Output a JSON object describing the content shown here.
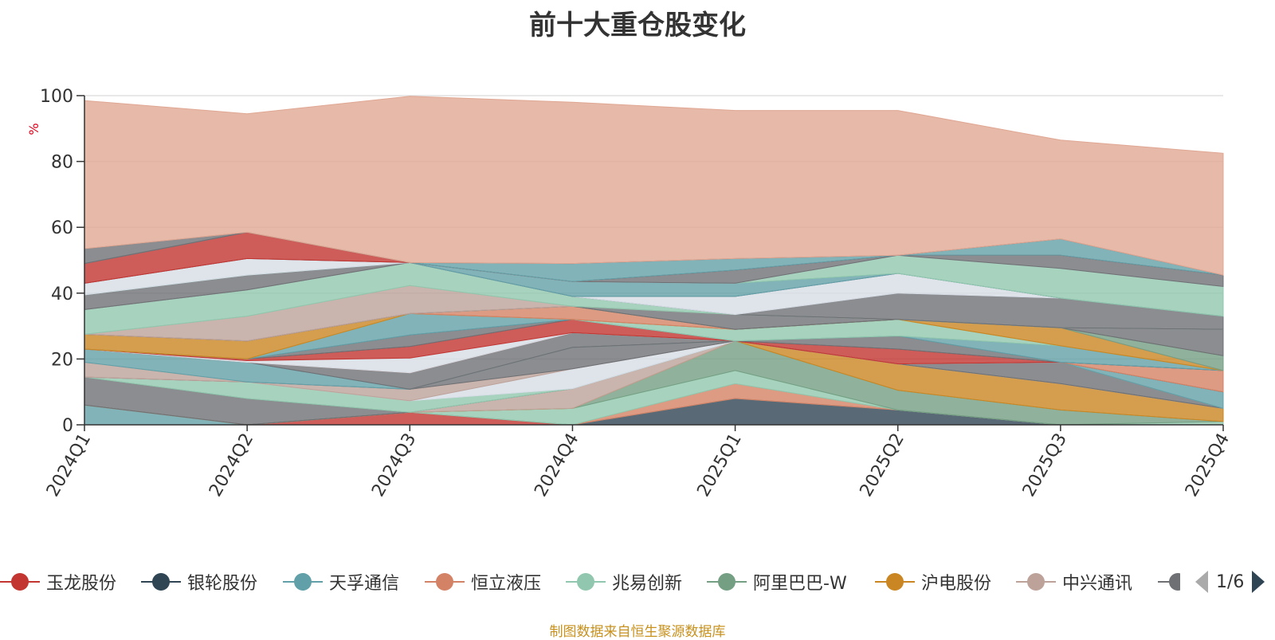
{
  "title": "前十大重仓股变化",
  "footer": "制图数据来自恒生聚源数据库",
  "legend_pager": "1/6",
  "chart_data": {
    "type": "area",
    "stacked": true,
    "title": "前十大重仓股变化",
    "ylabel": "%",
    "ylim": [
      0,
      100
    ],
    "yticks": [
      0,
      20,
      40,
      60,
      80,
      100
    ],
    "grid": true,
    "legend_position": "bottom",
    "categories": [
      "2024Q1",
      "2024Q2",
      "2024Q3",
      "2024Q4",
      "2025Q1",
      "2025Q2",
      "2025Q3",
      "2025Q4"
    ],
    "series": [
      {
        "name": "玉龙股份",
        "color": "#c23531",
        "values": [
          0,
          0,
          3.8,
          0,
          0,
          0,
          0,
          0
        ]
      },
      {
        "name": "银轮股份",
        "color": "#2f4554",
        "values": [
          0,
          0,
          0,
          0,
          8.0,
          4.5,
          0,
          0
        ]
      },
      {
        "name": "天孚通信",
        "color": "#61a0a8",
        "values": [
          6.0,
          0,
          0,
          0,
          0,
          0,
          0,
          0
        ]
      },
      {
        "name": "恒立液压",
        "color": "#d48265",
        "values": [
          0,
          0,
          0,
          0,
          4.5,
          0,
          0,
          0
        ]
      },
      {
        "name": "兆易创新",
        "color": "#91c7ae",
        "values": [
          0,
          0,
          0,
          5.0,
          4.0,
          0,
          0,
          1.0
        ]
      },
      {
        "name": "阿里巴巴-W",
        "color": "#749f83",
        "values": [
          0,
          0,
          0,
          0,
          9.0,
          6.0,
          4.5,
          0
        ]
      },
      {
        "name": "沪电股份",
        "color": "#ca8622",
        "values": [
          0,
          0,
          0,
          0,
          0,
          8.0,
          8.0,
          4.0
        ]
      },
      {
        "name": "中兴通讯",
        "color": "#bda29a",
        "values": [
          0,
          0,
          0,
          6.0,
          0,
          0,
          0,
          0
        ]
      },
      {
        "name": "",
        "color": "#6e7074",
        "values": [
          8.5,
          8.0,
          0,
          0,
          0,
          0,
          0,
          0
        ]
      },
      {
        "name": "",
        "color": "#91c7ae",
        "values": [
          0,
          5.0,
          3.5,
          0,
          0,
          0,
          0,
          0
        ]
      },
      {
        "name": "",
        "color": "#d7dde6",
        "values": [
          0,
          0,
          0,
          6.0,
          0,
          0,
          0,
          0
        ]
      },
      {
        "name": "",
        "color": "#bda29a",
        "values": [
          0,
          0,
          3.5,
          0,
          0,
          0,
          0,
          0
        ]
      },
      {
        "name": "",
        "color": "#6e7074",
        "values": [
          0,
          0,
          0,
          6.5,
          0,
          0,
          6.5,
          0
        ]
      },
      {
        "name": "",
        "color": "#bda29a",
        "values": [
          4.5,
          0,
          0,
          0,
          0,
          0,
          0,
          0
        ]
      },
      {
        "name": "",
        "color": "#61a0a8",
        "values": [
          4.0,
          6.0,
          0,
          0,
          0,
          0,
          0,
          5.0
        ]
      },
      {
        "name": "",
        "color": "#6e7074",
        "values": [
          0,
          0,
          5.0,
          4.5,
          0,
          0,
          0,
          0
        ]
      },
      {
        "name": "",
        "color": "#d48265",
        "values": [
          0,
          0,
          0,
          0,
          0,
          0,
          0,
          6.5
        ]
      },
      {
        "name": "",
        "color": "#d7dde6",
        "values": [
          0,
          0.5,
          4.5,
          0,
          0,
          0,
          0,
          0
        ]
      },
      {
        "name": "",
        "color": "#c23531",
        "values": [
          0,
          0.5,
          3.5,
          4.0,
          0,
          4.5,
          0,
          0
        ]
      },
      {
        "name": "",
        "color": "#6e7074",
        "values": [
          0,
          0,
          3.5,
          0,
          0,
          4.0,
          0,
          0
        ]
      },
      {
        "name": "",
        "color": "#61a0a8",
        "values": [
          0,
          0,
          6.5,
          0,
          0,
          0,
          5.0,
          0
        ]
      },
      {
        "name": "",
        "color": "#91c7ae",
        "values": [
          0,
          0,
          0,
          0,
          3.5,
          5.0,
          0,
          0
        ]
      },
      {
        "name": "",
        "color": "#ca8622",
        "values": [
          4.5,
          5.5,
          0,
          0,
          0,
          0,
          5.5,
          0
        ]
      },
      {
        "name": "",
        "color": "#d48265",
        "values": [
          0,
          0,
          0,
          4.0,
          0,
          0,
          0,
          0
        ]
      },
      {
        "name": "",
        "color": "#749f83",
        "values": [
          0,
          0,
          0,
          0,
          0,
          0,
          0,
          4.5
        ]
      },
      {
        "name": "",
        "color": "#6e7074",
        "values": [
          0,
          0,
          0,
          0,
          4.5,
          0,
          0,
          8.0
        ]
      },
      {
        "name": "",
        "color": "#bda29a",
        "values": [
          0,
          7.5,
          8.5,
          0,
          0,
          0,
          0,
          0
        ]
      },
      {
        "name": "",
        "color": "#91c7ae",
        "values": [
          7.5,
          8.0,
          7.0,
          3.0,
          0,
          0,
          0,
          0
        ]
      },
      {
        "name": "",
        "color": "#6e7074",
        "values": [
          0,
          0,
          0,
          0,
          0,
          8.0,
          9.0,
          4.0
        ]
      },
      {
        "name": "",
        "color": "#d7dde6",
        "values": [
          0,
          0,
          0,
          0,
          5.5,
          6.0,
          0,
          0
        ]
      },
      {
        "name": "",
        "color": "#6e7074",
        "values": [
          4.5,
          4.5,
          0,
          0,
          0,
          0,
          0,
          0
        ]
      },
      {
        "name": "",
        "color": "#61a0a8",
        "values": [
          0,
          0,
          0,
          4.5,
          4.0,
          0,
          0,
          0
        ]
      },
      {
        "name": "",
        "color": "#91c7ae",
        "values": [
          0,
          0,
          0,
          0,
          0,
          5.5,
          9.0,
          9.0
        ]
      },
      {
        "name": "",
        "color": "#d7dde6",
        "values": [
          3.5,
          5.0,
          0,
          0,
          0,
          0,
          0,
          0
        ]
      },
      {
        "name": "",
        "color": "#6e7074",
        "values": [
          0,
          0,
          0,
          0,
          4.0,
          0,
          4.0,
          3.5
        ]
      },
      {
        "name": "",
        "color": "#c23531",
        "values": [
          6.0,
          8.0,
          0,
          0,
          0,
          0,
          0,
          0
        ]
      },
      {
        "name": "",
        "color": "#61a0a8",
        "values": [
          0,
          0,
          0,
          5.5,
          3.5,
          0,
          5.0,
          0
        ]
      },
      {
        "name": "",
        "color": "#6e7074",
        "values": [
          4.5,
          0,
          0,
          0,
          0,
          0,
          0,
          0
        ]
      },
      {
        "name": "",
        "color": "#e0a793",
        "values": [
          45,
          36,
          50.5,
          49,
          45,
          44,
          30,
          37
        ]
      }
    ]
  },
  "legend": [
    {
      "label": "玉龙股份",
      "color": "#c23531"
    },
    {
      "label": "银轮股份",
      "color": "#2f4554"
    },
    {
      "label": "天孚通信",
      "color": "#61a0a8"
    },
    {
      "label": "恒立液压",
      "color": "#d48265"
    },
    {
      "label": "兆易创新",
      "color": "#91c7ae"
    },
    {
      "label": "阿里巴巴-W",
      "color": "#749f83"
    },
    {
      "label": "沪电股份",
      "color": "#ca8622"
    },
    {
      "label": "中兴通讯",
      "color": "#bda29a"
    }
  ],
  "legend_partial_color": "#6e7074"
}
